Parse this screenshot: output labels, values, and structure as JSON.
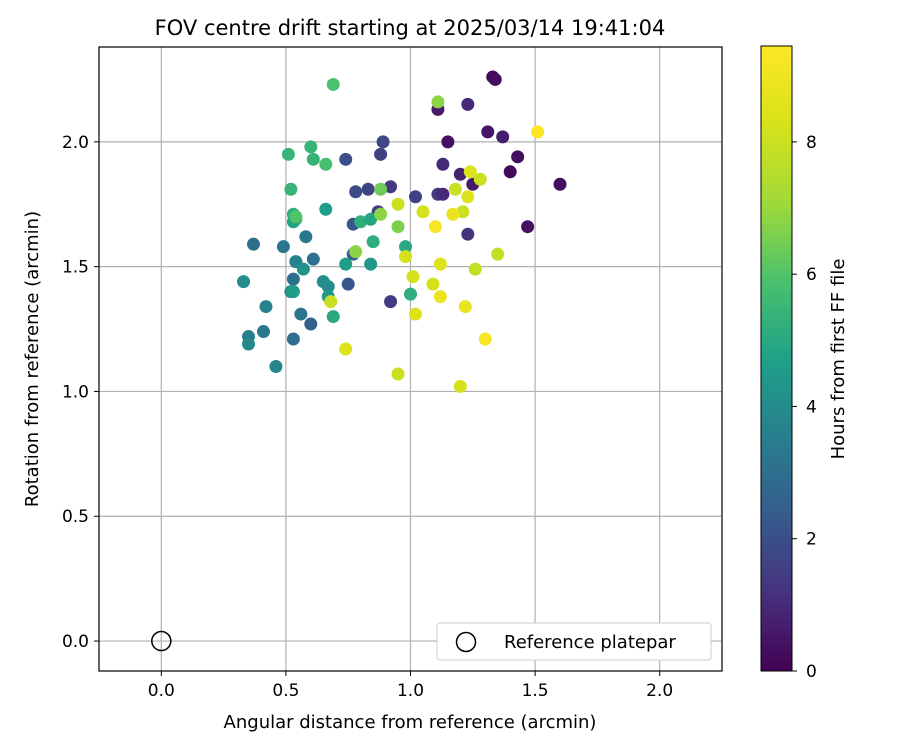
{
  "chart_data": {
    "type": "scatter",
    "title": "FOV centre drift starting at 2025/03/14 19:41:04",
    "xlabel": "Angular distance from reference (arcmin)",
    "ylabel": "Rotation from reference (arcmin)",
    "xlim": [
      -0.25,
      2.25
    ],
    "ylim": [
      -0.12,
      2.38
    ],
    "xticks": [
      "0.0",
      "0.5",
      "1.0",
      "1.5",
      "2.0"
    ],
    "yticks": [
      "0.0",
      "0.5",
      "1.0",
      "1.5",
      "2.0"
    ],
    "grid": true,
    "legend": {
      "position": "lower right",
      "entries": [
        "Reference platepar"
      ]
    },
    "reference_point": {
      "x": 0.0,
      "y": 0.0,
      "marker": "hollow circle"
    },
    "colorbar": {
      "label": "Hours from first FF file",
      "colormap": "viridis",
      "range": [
        0,
        9.45
      ],
      "ticks": [
        "0",
        "2",
        "4",
        "6",
        "8"
      ]
    },
    "points": [
      {
        "x": 1.33,
        "y": 2.26,
        "c": 0.2
      },
      {
        "x": 1.34,
        "y": 2.25,
        "c": 0.3
      },
      {
        "x": 1.23,
        "y": 2.15,
        "c": 1.0
      },
      {
        "x": 1.11,
        "y": 2.13,
        "c": 0.6
      },
      {
        "x": 1.31,
        "y": 2.04,
        "c": 0.5
      },
      {
        "x": 1.37,
        "y": 2.02,
        "c": 0.7
      },
      {
        "x": 1.15,
        "y": 2.0,
        "c": 0.4
      },
      {
        "x": 1.43,
        "y": 1.94,
        "c": 0.3
      },
      {
        "x": 1.13,
        "y": 1.91,
        "c": 1.0
      },
      {
        "x": 1.2,
        "y": 1.87,
        "c": 0.8
      },
      {
        "x": 1.4,
        "y": 1.88,
        "c": 0.2
      },
      {
        "x": 1.25,
        "y": 1.83,
        "c": 0.6
      },
      {
        "x": 1.6,
        "y": 1.83,
        "c": 0.3
      },
      {
        "x": 1.47,
        "y": 1.66,
        "c": 0.4
      },
      {
        "x": 1.23,
        "y": 1.63,
        "c": 1.2
      },
      {
        "x": 1.11,
        "y": 1.79,
        "c": 1.4
      },
      {
        "x": 1.13,
        "y": 1.79,
        "c": 1.0
      },
      {
        "x": 1.02,
        "y": 1.78,
        "c": 1.6
      },
      {
        "x": 0.92,
        "y": 1.82,
        "c": 1.4
      },
      {
        "x": 0.89,
        "y": 2.0,
        "c": 1.8
      },
      {
        "x": 0.88,
        "y": 1.95,
        "c": 1.6
      },
      {
        "x": 0.74,
        "y": 1.93,
        "c": 2.0
      },
      {
        "x": 0.78,
        "y": 1.8,
        "c": 1.9
      },
      {
        "x": 0.83,
        "y": 1.81,
        "c": 1.7
      },
      {
        "x": 0.87,
        "y": 1.72,
        "c": 1.5
      },
      {
        "x": 0.77,
        "y": 1.67,
        "c": 2.2
      },
      {
        "x": 0.77,
        "y": 1.55,
        "c": 2.4
      },
      {
        "x": 0.92,
        "y": 1.36,
        "c": 1.5
      },
      {
        "x": 0.75,
        "y": 1.43,
        "c": 2.2
      },
      {
        "x": 0.37,
        "y": 1.59,
        "c": 3.0
      },
      {
        "x": 0.49,
        "y": 1.58,
        "c": 3.2
      },
      {
        "x": 0.61,
        "y": 1.53,
        "c": 3.1
      },
      {
        "x": 0.58,
        "y": 1.62,
        "c": 3.3
      },
      {
        "x": 0.53,
        "y": 1.45,
        "c": 3.0
      },
      {
        "x": 0.54,
        "y": 1.52,
        "c": 3.6
      },
      {
        "x": 0.57,
        "y": 1.49,
        "c": 4.2
      },
      {
        "x": 0.33,
        "y": 1.44,
        "c": 4.0
      },
      {
        "x": 0.42,
        "y": 1.34,
        "c": 3.7
      },
      {
        "x": 0.52,
        "y": 1.4,
        "c": 4.1
      },
      {
        "x": 0.53,
        "y": 1.4,
        "c": 4.6
      },
      {
        "x": 0.56,
        "y": 1.31,
        "c": 3.2
      },
      {
        "x": 0.6,
        "y": 1.27,
        "c": 2.6
      },
      {
        "x": 0.35,
        "y": 1.22,
        "c": 3.5
      },
      {
        "x": 0.35,
        "y": 1.19,
        "c": 3.9
      },
      {
        "x": 0.41,
        "y": 1.24,
        "c": 3.3
      },
      {
        "x": 0.53,
        "y": 1.21,
        "c": 3.0
      },
      {
        "x": 0.46,
        "y": 1.1,
        "c": 3.8
      },
      {
        "x": 0.65,
        "y": 1.44,
        "c": 4.1
      },
      {
        "x": 0.67,
        "y": 1.42,
        "c": 4.0
      },
      {
        "x": 0.67,
        "y": 1.38,
        "c": 4.4
      },
      {
        "x": 0.69,
        "y": 1.3,
        "c": 5.0
      },
      {
        "x": 0.68,
        "y": 1.36,
        "c": 7.9
      },
      {
        "x": 0.74,
        "y": 1.51,
        "c": 4.6
      },
      {
        "x": 0.84,
        "y": 1.51,
        "c": 4.4
      },
      {
        "x": 0.85,
        "y": 1.6,
        "c": 5.2
      },
      {
        "x": 0.8,
        "y": 1.68,
        "c": 5.2
      },
      {
        "x": 0.84,
        "y": 1.69,
        "c": 4.9
      },
      {
        "x": 0.98,
        "y": 1.58,
        "c": 5.0
      },
      {
        "x": 1.0,
        "y": 1.39,
        "c": 5.2
      },
      {
        "x": 0.66,
        "y": 1.73,
        "c": 4.6
      },
      {
        "x": 0.52,
        "y": 1.81,
        "c": 5.4
      },
      {
        "x": 0.51,
        "y": 1.95,
        "c": 5.4
      },
      {
        "x": 0.61,
        "y": 1.93,
        "c": 5.4
      },
      {
        "x": 0.6,
        "y": 1.98,
        "c": 5.4
      },
      {
        "x": 0.66,
        "y": 1.91,
        "c": 5.8
      },
      {
        "x": 0.69,
        "y": 2.23,
        "c": 5.9
      },
      {
        "x": 0.53,
        "y": 1.71,
        "c": 5.2
      },
      {
        "x": 0.54,
        "y": 1.69,
        "c": 5.6
      },
      {
        "x": 0.53,
        "y": 1.68,
        "c": 4.8
      },
      {
        "x": 0.54,
        "y": 1.7,
        "c": 6.0
      },
      {
        "x": 0.78,
        "y": 1.56,
        "c": 6.8
      },
      {
        "x": 0.88,
        "y": 1.81,
        "c": 6.4
      },
      {
        "x": 0.88,
        "y": 1.71,
        "c": 6.8
      },
      {
        "x": 0.95,
        "y": 1.66,
        "c": 6.6
      },
      {
        "x": 1.11,
        "y": 2.16,
        "c": 6.8
      },
      {
        "x": 0.95,
        "y": 1.75,
        "c": 8.0
      },
      {
        "x": 1.05,
        "y": 1.72,
        "c": 8.2
      },
      {
        "x": 1.18,
        "y": 1.81,
        "c": 8.0
      },
      {
        "x": 1.21,
        "y": 1.72,
        "c": 8.0
      },
      {
        "x": 1.23,
        "y": 1.78,
        "c": 8.4
      },
      {
        "x": 1.24,
        "y": 1.88,
        "c": 8.4
      },
      {
        "x": 1.28,
        "y": 1.85,
        "c": 8.0
      },
      {
        "x": 1.17,
        "y": 1.71,
        "c": 8.8
      },
      {
        "x": 1.1,
        "y": 1.66,
        "c": 9.3
      },
      {
        "x": 1.51,
        "y": 2.04,
        "c": 9.4
      },
      {
        "x": 0.98,
        "y": 1.54,
        "c": 8.2
      },
      {
        "x": 1.01,
        "y": 1.46,
        "c": 8.2
      },
      {
        "x": 1.12,
        "y": 1.51,
        "c": 8.4
      },
      {
        "x": 1.26,
        "y": 1.49,
        "c": 7.8
      },
      {
        "x": 1.35,
        "y": 1.55,
        "c": 7.8
      },
      {
        "x": 1.09,
        "y": 1.43,
        "c": 8.2
      },
      {
        "x": 1.12,
        "y": 1.38,
        "c": 8.8
      },
      {
        "x": 1.02,
        "y": 1.31,
        "c": 8.4
      },
      {
        "x": 1.22,
        "y": 1.34,
        "c": 8.8
      },
      {
        "x": 1.3,
        "y": 1.21,
        "c": 9.3
      },
      {
        "x": 0.74,
        "y": 1.17,
        "c": 8.4
      },
      {
        "x": 0.95,
        "y": 1.07,
        "c": 8.0
      },
      {
        "x": 1.2,
        "y": 1.02,
        "c": 8.2
      }
    ]
  }
}
